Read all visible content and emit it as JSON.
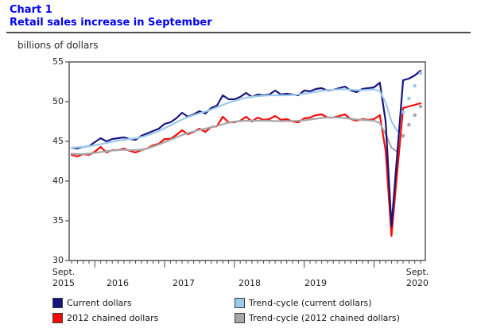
{
  "header": {
    "kicker": "Chart 1",
    "title": "Retail sales increase in September"
  },
  "unit_label": "billions of dollars",
  "y_axis": {
    "ticks": [
      "55",
      "50",
      "45",
      "40",
      "35",
      "30"
    ]
  },
  "x_axis": {
    "left_label_line1": "Sept.",
    "left_label_line2": "2015",
    "years": [
      "2016",
      "2017",
      "2018",
      "2019"
    ],
    "right_label_line1": "Sept.",
    "right_label_line2": "2020"
  },
  "legend": [
    {
      "label": "Current dollars",
      "color": "#15157f"
    },
    {
      "label": "2012 chained dollars",
      "color": "#f60909"
    },
    {
      "label": "Trend-cycle (current dollars)",
      "color": "#9dc9ea"
    },
    {
      "label": "Trend-cycle (2012 chained dollars)",
      "color": "#a7a7a7"
    }
  ],
  "colors": {
    "title_blue": "#0101ee",
    "axis_line": "#4d4d4d",
    "current_dollars": "#15157f",
    "chained_dollars": "#f60909",
    "trend_current": "#9dc9ea",
    "trend_chained": "#a7a7a7"
  },
  "chart_data": {
    "type": "line",
    "title": "Retail sales increase in September",
    "ylabel": "billions of dollars",
    "ylim": [
      30,
      55
    ],
    "y_tick_step": 5,
    "x_start": "Sept. 2015",
    "x_end": "Sept. 2020",
    "frequency": "monthly",
    "n_points": 61,
    "legend_position": "bottom",
    "grid": false,
    "series": [
      {
        "name": "Current dollars",
        "color": "#15157f",
        "style": "solid",
        "values": [
          44.2,
          44.1,
          44.3,
          44.4,
          44.9,
          45.4,
          45.0,
          45.3,
          45.4,
          45.5,
          45.3,
          45.2,
          45.7,
          46.0,
          46.3,
          46.6,
          47.2,
          47.4,
          47.9,
          48.6,
          48.1,
          48.4,
          48.8,
          48.5,
          49.2,
          49.5,
          50.8,
          50.3,
          50.3,
          50.6,
          51.1,
          50.6,
          50.9,
          50.8,
          50.9,
          51.4,
          50.9,
          51.0,
          50.9,
          50.8,
          51.4,
          51.3,
          51.6,
          51.7,
          51.4,
          51.5,
          51.7,
          51.9,
          51.4,
          51.2,
          51.6,
          51.7,
          51.8,
          52.4,
          47.5,
          34.3,
          43.5,
          52.7,
          52.9,
          53.3,
          53.9
        ]
      },
      {
        "name": "2012 chained dollars",
        "color": "#f60909",
        "style": "solid",
        "values": [
          43.3,
          43.1,
          43.4,
          43.3,
          43.7,
          44.3,
          43.6,
          43.9,
          43.9,
          44.1,
          43.8,
          43.6,
          43.9,
          44.1,
          44.5,
          44.7,
          45.3,
          45.3,
          45.8,
          46.4,
          45.9,
          46.2,
          46.6,
          46.2,
          46.8,
          46.9,
          48.1,
          47.4,
          47.4,
          47.6,
          48.1,
          47.5,
          48.0,
          47.7,
          47.8,
          48.2,
          47.7,
          47.8,
          47.5,
          47.4,
          47.9,
          48.0,
          48.3,
          48.4,
          48.0,
          48.0,
          48.2,
          48.4,
          47.8,
          47.6,
          47.8,
          47.7,
          47.8,
          48.3,
          43.8,
          33.1,
          41.2,
          49.2,
          49.4,
          49.6,
          49.8
        ]
      },
      {
        "name": "Trend-cycle (current dollars)",
        "color": "#9dc9ea",
        "style": "solid_then_dotted",
        "dotted_from": 57,
        "values": [
          44.2,
          44.25,
          44.3,
          44.4,
          44.5,
          44.65,
          44.8,
          44.95,
          45.1,
          45.2,
          45.3,
          45.4,
          45.55,
          45.75,
          46.0,
          46.3,
          46.65,
          47.0,
          47.4,
          47.75,
          48.05,
          48.3,
          48.55,
          48.75,
          49.0,
          49.3,
          49.6,
          49.85,
          50.1,
          50.3,
          50.5,
          50.6,
          50.7,
          50.75,
          50.8,
          50.8,
          50.8,
          50.8,
          50.85,
          50.9,
          51.0,
          51.1,
          51.25,
          51.35,
          51.45,
          51.5,
          51.55,
          51.55,
          51.5,
          51.45,
          51.45,
          51.5,
          51.55,
          51.3,
          49.9,
          47.5,
          46.3,
          48.7,
          50.4,
          52.0,
          53.6
        ]
      },
      {
        "name": "Trend-cycle (2012 chained dollars)",
        "color": "#a7a7a7",
        "style": "solid_then_dotted",
        "dotted_from": 57,
        "values": [
          43.45,
          43.4,
          43.4,
          43.45,
          43.55,
          43.65,
          43.75,
          43.85,
          43.9,
          43.95,
          43.9,
          43.9,
          43.95,
          44.1,
          44.35,
          44.6,
          44.9,
          45.2,
          45.5,
          45.8,
          46.05,
          46.25,
          46.45,
          46.6,
          46.75,
          46.95,
          47.15,
          47.35,
          47.5,
          47.55,
          47.6,
          47.6,
          47.6,
          47.6,
          47.6,
          47.55,
          47.55,
          47.55,
          47.55,
          47.6,
          47.65,
          47.75,
          47.85,
          47.95,
          48.0,
          48.0,
          48.0,
          47.95,
          47.85,
          47.75,
          47.7,
          47.65,
          47.6,
          47.3,
          45.9,
          44.2,
          43.7,
          45.7,
          47.1,
          48.3,
          49.4
        ]
      }
    ]
  }
}
